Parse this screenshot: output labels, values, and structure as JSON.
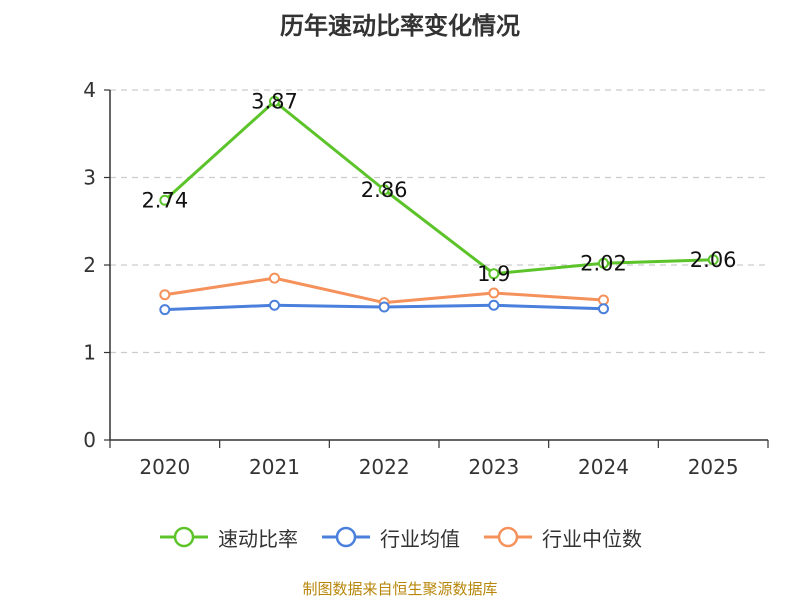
{
  "chart_data": {
    "type": "line",
    "title": "历年速动比率变化情况",
    "categories": [
      "2020",
      "2021",
      "2022",
      "2023",
      "2024",
      "2025"
    ],
    "ylim": [
      0,
      4
    ],
    "yticks": [
      "0",
      "1",
      "2",
      "3",
      "4"
    ],
    "grid": true,
    "legend_position": "bottom",
    "series": [
      {
        "name": "速动比率",
        "color": "#5cc42a",
        "values": [
          2.74,
          3.87,
          2.86,
          1.9,
          2.02,
          2.06
        ],
        "labels": [
          "2.74",
          "3.87",
          "2.86",
          "1.9",
          "2.02",
          "2.06"
        ]
      },
      {
        "name": "行业均值",
        "color": "#4a7fdb",
        "values": [
          1.49,
          1.54,
          1.52,
          1.54,
          1.5,
          null
        ]
      },
      {
        "name": "行业中位数",
        "color": "#f5915b",
        "values": [
          1.66,
          1.85,
          1.57,
          1.68,
          1.6,
          null
        ]
      }
    ]
  },
  "source_note": "制图数据来自恒生聚源数据库"
}
